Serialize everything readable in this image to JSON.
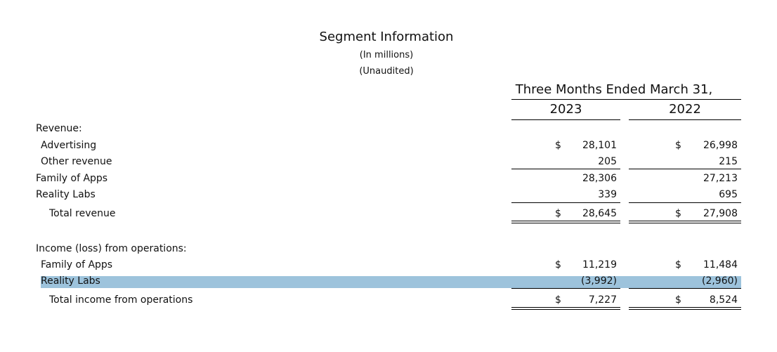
{
  "header": {
    "title": "Segment Information",
    "units": "(In millions)",
    "status": "(Unaudited)"
  },
  "table": {
    "period": "Three Months Ended March 31,",
    "columns": [
      "2023",
      "2022"
    ],
    "rows": [
      {
        "label": "Revenue:"
      },
      {
        "label": "Advertising",
        "cells": [
          {
            "currency": "$",
            "value": "28,101"
          },
          {
            "currency": "$",
            "value": "26,998"
          }
        ]
      },
      {
        "label": "Other revenue",
        "cells": [
          {
            "value": "205"
          },
          {
            "value": "215"
          }
        ]
      },
      {
        "label": "Family of Apps",
        "cells": [
          {
            "value": "28,306"
          },
          {
            "value": "27,213"
          }
        ]
      },
      {
        "label": "Reality Labs",
        "cells": [
          {
            "value": "339"
          },
          {
            "value": "695"
          }
        ]
      },
      {
        "label": "Total revenue",
        "cells": [
          {
            "currency": "$",
            "value": "28,645"
          },
          {
            "currency": "$",
            "value": "27,908"
          }
        ]
      },
      {
        "label": "Income (loss) from operations:"
      },
      {
        "label": "Family of Apps",
        "cells": [
          {
            "currency": "$",
            "value": "11,219"
          },
          {
            "currency": "$",
            "value": "11,484"
          }
        ]
      },
      {
        "label": "Reality Labs",
        "cells": [
          {
            "value": "(3,992)"
          },
          {
            "value": "(2,960)"
          }
        ]
      },
      {
        "label": "Total income from operations",
        "cells": [
          {
            "currency": "$",
            "value": "7,227"
          },
          {
            "currency": "$",
            "value": "8,524"
          }
        ]
      }
    ]
  }
}
